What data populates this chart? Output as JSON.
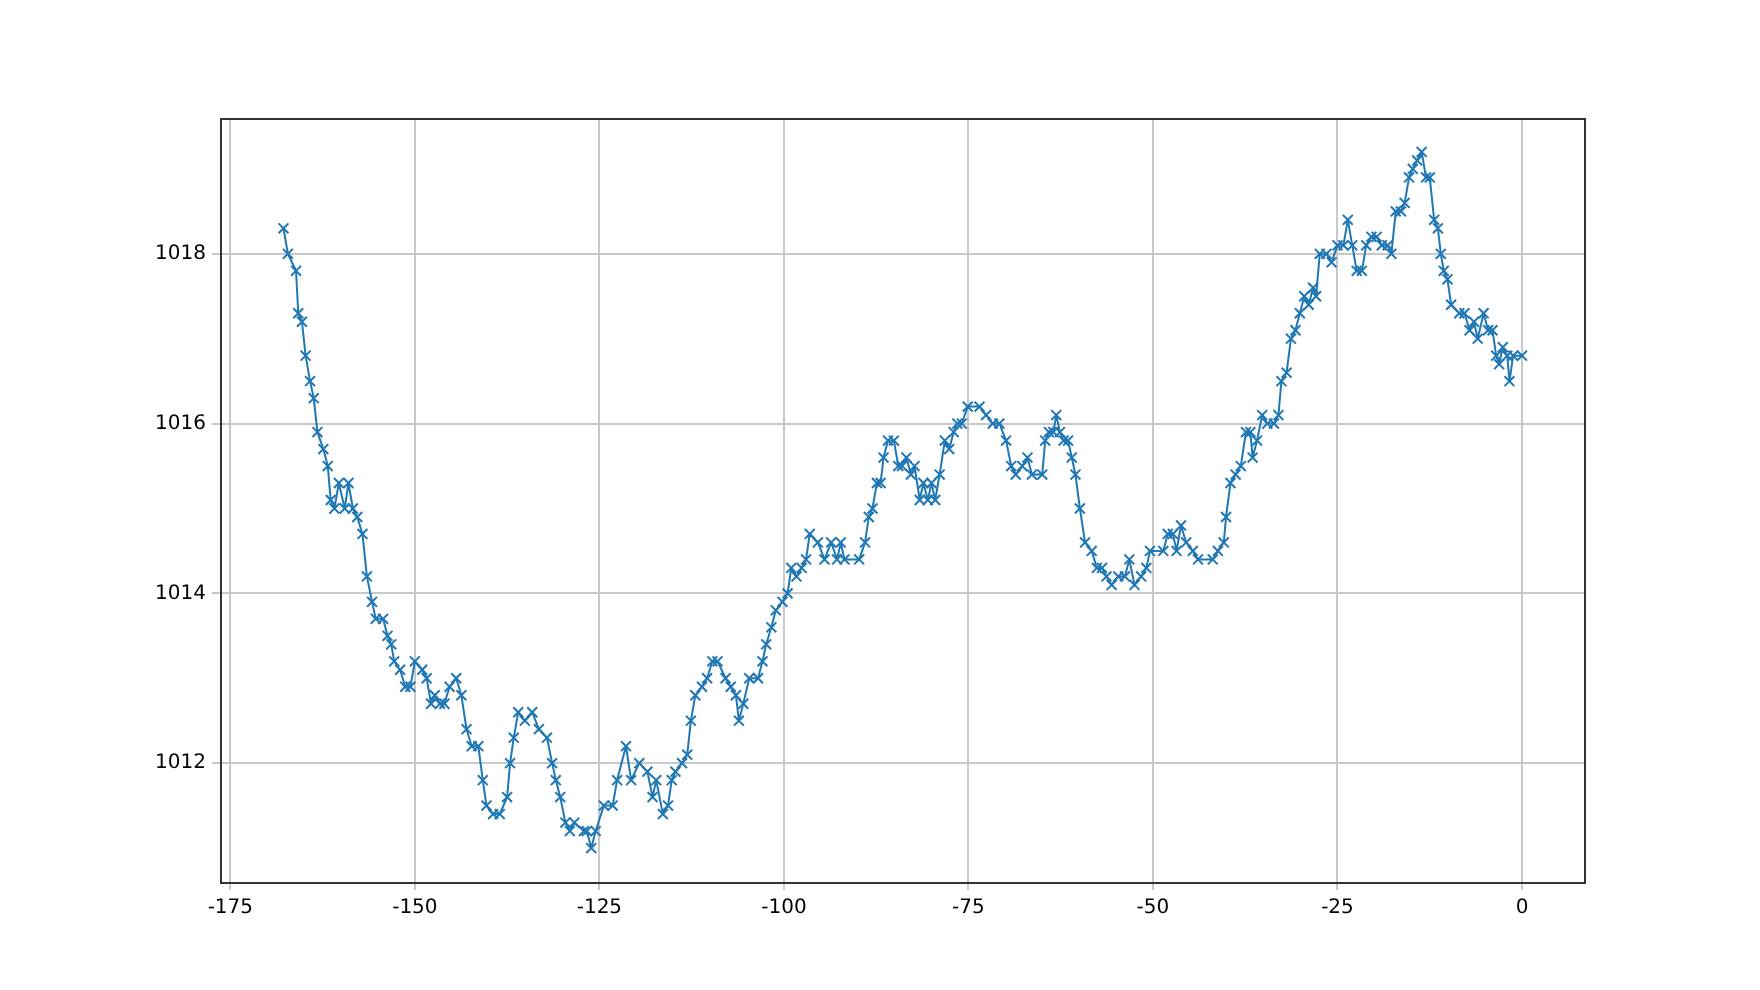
{
  "chart_data": {
    "type": "line",
    "marker": "cross",
    "line_style": "solid",
    "grid": true,
    "legend": false,
    "xlim": [
      -176.4,
      8.4
    ],
    "ylim": [
      1010.6,
      1019.6
    ],
    "xticks": [
      -175,
      -150,
      -125,
      -100,
      -75,
      -50,
      -25,
      0
    ],
    "yticks": [
      1012,
      1014,
      1016,
      1018
    ],
    "series": [
      {
        "color": "#1f77b4",
        "x": [
          -167.8,
          -167.2,
          -166.1,
          -165.8,
          -165.3,
          -164.8,
          -164.2,
          -163.7,
          -163.2,
          -162.4,
          -161.8,
          -161.4,
          -160.9,
          -160.3,
          -159.5,
          -159.0,
          -158.4,
          -157.8,
          -157.1,
          -156.5,
          -155.8,
          -155.3,
          -154.3,
          -153.7,
          -153.2,
          -152.8,
          -152.0,
          -151.3,
          -150.6,
          -150.0,
          -149.0,
          -148.4,
          -147.8,
          -147.3,
          -146.6,
          -146.0,
          -145.3,
          -144.4,
          -143.7,
          -143.0,
          -142.3,
          -141.4,
          -140.8,
          -140.3,
          -139.4,
          -138.5,
          -137.5,
          -137.1,
          -136.6,
          -136.0,
          -135.1,
          -134.1,
          -133.2,
          -132.1,
          -131.4,
          -130.9,
          -130.3,
          -129.6,
          -129.0,
          -128.4,
          -127.1,
          -126.7,
          -126.1,
          -125.5,
          -124.4,
          -123.2,
          -122.6,
          -121.4,
          -120.7,
          -119.6,
          -118.5,
          -117.8,
          -117.3,
          -116.4,
          -115.7,
          -115.2,
          -114.7,
          -113.8,
          -113.1,
          -112.6,
          -112.0,
          -111.1,
          -110.4,
          -109.7,
          -109.0,
          -107.9,
          -107.2,
          -106.5,
          -106.1,
          -105.5,
          -104.7,
          -103.5,
          -102.9,
          -102.4,
          -101.7,
          -101.1,
          -100.2,
          -99.5,
          -99.0,
          -98.3,
          -97.6,
          -97.0,
          -96.5,
          -95.4,
          -94.5,
          -93.6,
          -92.8,
          -92.3,
          -91.8,
          -89.8,
          -89.0,
          -88.5,
          -88.0,
          -87.4,
          -86.9,
          -86.5,
          -85.9,
          -85.1,
          -84.5,
          -84.0,
          -83.4,
          -82.8,
          -82.3,
          -81.6,
          -81.1,
          -80.5,
          -80.0,
          -79.5,
          -78.9,
          -78.2,
          -77.6,
          -77.0,
          -76.5,
          -75.9,
          -75.1,
          -73.5,
          -72.6,
          -71.7,
          -70.8,
          -69.9,
          -69.2,
          -68.6,
          -67.7,
          -67.0,
          -66.4,
          -65.0,
          -64.6,
          -64.1,
          -63.5,
          -63.1,
          -62.6,
          -62.1,
          -61.5,
          -61.0,
          -60.5,
          -59.9,
          -59.2,
          -58.3,
          -57.6,
          -56.9,
          -56.3,
          -55.6,
          -54.7,
          -53.8,
          -53.2,
          -52.5,
          -51.6,
          -50.9,
          -50.4,
          -48.6,
          -48.0,
          -47.3,
          -46.8,
          -46.2,
          -45.5,
          -44.6,
          -43.9,
          -41.9,
          -41.2,
          -40.4,
          -40.1,
          -39.5,
          -38.8,
          -38.1,
          -37.4,
          -36.8,
          -36.5,
          -35.9,
          -35.2,
          -34.5,
          -33.6,
          -33.0,
          -32.6,
          -31.9,
          -31.3,
          -30.7,
          -30.1,
          -29.5,
          -28.9,
          -28.3,
          -27.9,
          -27.4,
          -26.5,
          -25.8,
          -25.0,
          -24.2,
          -23.6,
          -23.0,
          -22.4,
          -21.7,
          -21.1,
          -20.4,
          -19.7,
          -19.0,
          -18.2,
          -17.7,
          -17.1,
          -16.4,
          -15.9,
          -15.3,
          -14.8,
          -14.2,
          -13.6,
          -13.0,
          -12.5,
          -11.9,
          -11.4,
          -11.0,
          -10.6,
          -10.1,
          -9.6,
          -8.5,
          -7.8,
          -7.1,
          -6.5,
          -6.0,
          -5.2,
          -4.6,
          -4.0,
          -3.5,
          -3.1,
          -2.6,
          -2.0,
          -1.7,
          -1.2,
          0.0
        ],
        "values": [
          1018.3,
          1018.0,
          1017.8,
          1017.3,
          1017.2,
          1016.8,
          1016.5,
          1016.3,
          1015.9,
          1015.7,
          1015.5,
          1015.1,
          1015.0,
          1015.3,
          1015.0,
          1015.3,
          1015.0,
          1014.9,
          1014.7,
          1014.2,
          1013.9,
          1013.7,
          1013.7,
          1013.5,
          1013.4,
          1013.2,
          1013.1,
          1012.9,
          1012.9,
          1013.2,
          1013.1,
          1013.0,
          1012.7,
          1012.8,
          1012.7,
          1012.7,
          1012.9,
          1013.0,
          1012.8,
          1012.4,
          1012.2,
          1012.2,
          1011.8,
          1011.5,
          1011.4,
          1011.4,
          1011.6,
          1012.0,
          1012.3,
          1012.6,
          1012.5,
          1012.6,
          1012.4,
          1012.3,
          1012.0,
          1011.8,
          1011.6,
          1011.3,
          1011.2,
          1011.3,
          1011.2,
          1011.2,
          1011.0,
          1011.2,
          1011.5,
          1011.5,
          1011.8,
          1012.2,
          1011.8,
          1012.0,
          1011.9,
          1011.6,
          1011.8,
          1011.4,
          1011.5,
          1011.8,
          1011.9,
          1012.0,
          1012.1,
          1012.5,
          1012.8,
          1012.9,
          1013.0,
          1013.2,
          1013.2,
          1013.0,
          1012.9,
          1012.8,
          1012.5,
          1012.7,
          1013.0,
          1013.0,
          1013.2,
          1013.4,
          1013.6,
          1013.8,
          1013.9,
          1014.0,
          1014.3,
          1014.2,
          1014.3,
          1014.4,
          1014.7,
          1014.6,
          1014.4,
          1014.6,
          1014.4,
          1014.6,
          1014.4,
          1014.4,
          1014.6,
          1014.9,
          1015.0,
          1015.3,
          1015.3,
          1015.6,
          1015.8,
          1015.8,
          1015.5,
          1015.5,
          1015.6,
          1015.4,
          1015.5,
          1015.1,
          1015.3,
          1015.1,
          1015.3,
          1015.1,
          1015.4,
          1015.8,
          1015.7,
          1015.9,
          1016.0,
          1016.0,
          1016.2,
          1016.2,
          1016.1,
          1016.0,
          1016.0,
          1015.8,
          1015.5,
          1015.4,
          1015.5,
          1015.6,
          1015.4,
          1015.4,
          1015.8,
          1015.9,
          1015.9,
          1016.1,
          1015.9,
          1015.8,
          1015.8,
          1015.6,
          1015.4,
          1015.0,
          1014.6,
          1014.5,
          1014.3,
          1014.3,
          1014.2,
          1014.1,
          1014.2,
          1014.2,
          1014.4,
          1014.1,
          1014.2,
          1014.3,
          1014.5,
          1014.5,
          1014.7,
          1014.7,
          1014.5,
          1014.8,
          1014.6,
          1014.5,
          1014.4,
          1014.4,
          1014.5,
          1014.6,
          1014.9,
          1015.3,
          1015.4,
          1015.5,
          1015.9,
          1015.9,
          1015.6,
          1015.8,
          1016.1,
          1016.0,
          1016.0,
          1016.1,
          1016.5,
          1016.6,
          1017.0,
          1017.1,
          1017.3,
          1017.5,
          1017.4,
          1017.6,
          1017.5,
          1018.0,
          1018.0,
          1017.9,
          1018.1,
          1018.1,
          1018.4,
          1018.1,
          1017.8,
          1017.8,
          1018.1,
          1018.2,
          1018.2,
          1018.1,
          1018.1,
          1018.0,
          1018.5,
          1018.5,
          1018.6,
          1018.9,
          1019.0,
          1019.1,
          1019.2,
          1018.9,
          1018.9,
          1018.4,
          1018.3,
          1018.0,
          1017.8,
          1017.7,
          1017.4,
          1017.3,
          1017.3,
          1017.1,
          1017.2,
          1017.0,
          1017.3,
          1017.1,
          1017.1,
          1016.8,
          1016.7,
          1016.9,
          1016.8,
          1016.5,
          1016.8,
          1016.8
        ]
      }
    ]
  }
}
